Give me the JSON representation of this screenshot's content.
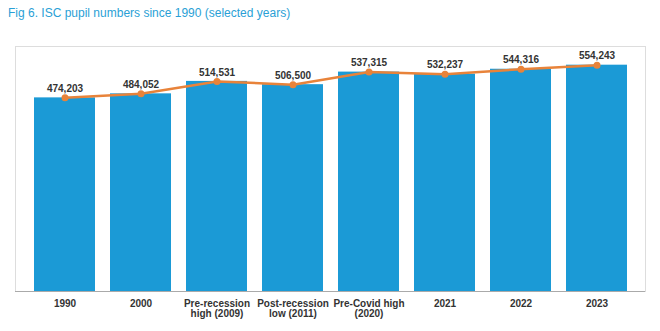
{
  "chart_data": {
    "type": "bar",
    "title": "Fig 6. ISC pupil numbers since 1990 (selected years)",
    "categories": [
      "1990",
      "2000",
      "Pre-recession\nhigh (2009)",
      "Post-recession\nlow (2011)",
      "Pre-Covid high\n(2020)",
      "2021",
      "2022",
      "2023"
    ],
    "series": [
      {
        "type": "bar",
        "color": "#1b9ad6",
        "values": [
          474203,
          484052,
          514531,
          506500,
          537315,
          532237,
          544316,
          554243
        ]
      },
      {
        "type": "line",
        "color": "#e8833a",
        "marker": "circle",
        "values": [
          474203,
          484052,
          514531,
          506500,
          537315,
          532237,
          544316,
          554243
        ],
        "value_labels": [
          "474,203",
          "484,052",
          "514,531",
          "506,500",
          "537,315",
          "532,237",
          "544,316",
          "554,243"
        ]
      }
    ],
    "ylim": [
      0,
      600000
    ],
    "yticks": [],
    "grid": false,
    "data_labels": true,
    "tick_labels": "x"
  }
}
